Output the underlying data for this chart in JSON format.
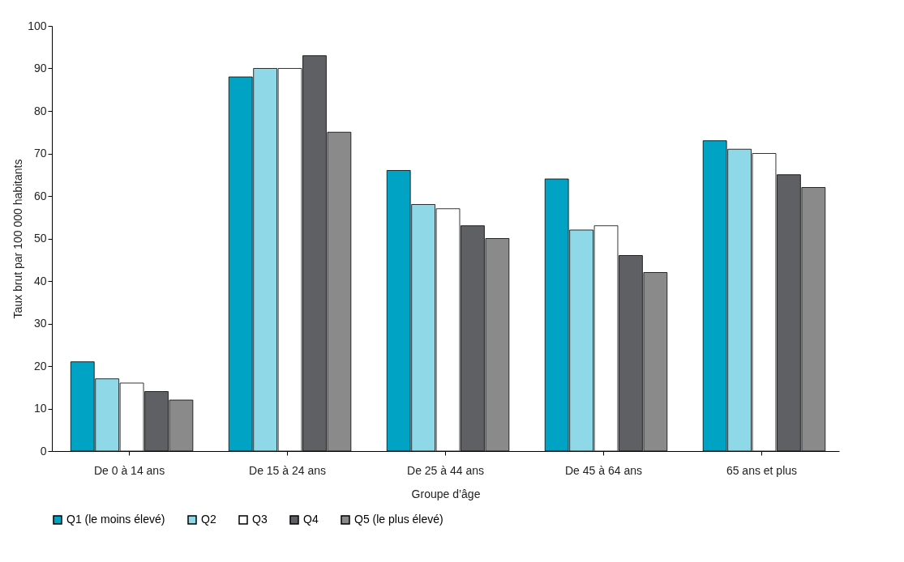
{
  "chart_data": {
    "type": "bar",
    "xlabel": "Groupe d’âge",
    "ylabel": "Taux brut par 100 000 habitants",
    "categories": [
      "De 0 à 14 ans",
      "De 15 à 24 ans",
      "De 25 à 44 ans",
      "De 45 à 64 ans",
      "65 ans et plus"
    ],
    "series": [
      {
        "name": "Q1 (le moins élevé)",
        "color": "#00a3c4",
        "values": [
          21,
          88,
          66,
          64,
          73
        ]
      },
      {
        "name": "Q2",
        "color": "#8fd8e8",
        "values": [
          17,
          90,
          58,
          52,
          71
        ]
      },
      {
        "name": "Q3",
        "color": "#ffffff",
        "values": [
          16,
          90,
          57,
          53,
          70
        ]
      },
      {
        "name": "Q4",
        "color": "#5f6064",
        "values": [
          14,
          93,
          53,
          46,
          65
        ]
      },
      {
        "name": "Q5 (le plus élevé)",
        "color": "#8a8a8a",
        "values": [
          12,
          75,
          50,
          42,
          62
        ]
      }
    ],
    "ylim": [
      0,
      100
    ],
    "yticks": [
      0,
      10,
      20,
      30,
      40,
      50,
      60,
      70,
      80,
      90,
      100
    ],
    "grid": false,
    "legend": "bottom"
  }
}
